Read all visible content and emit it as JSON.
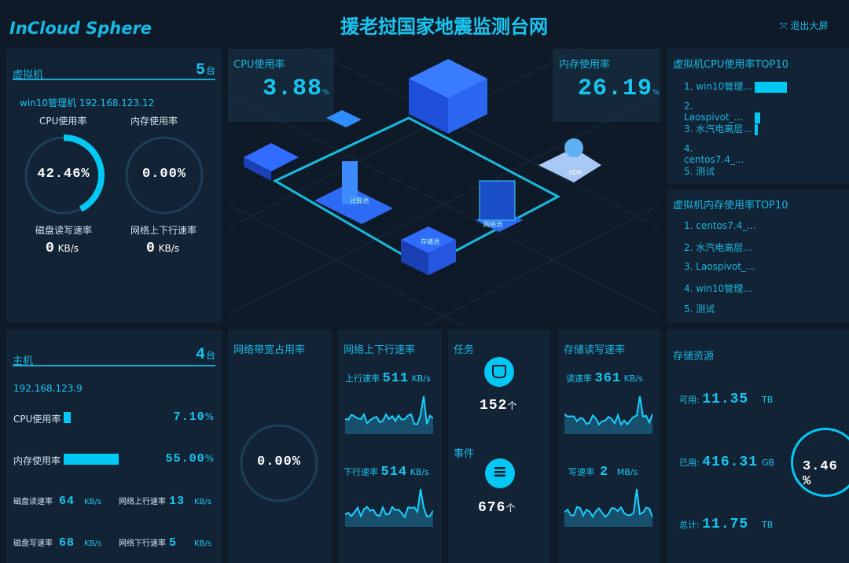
{
  "header": {
    "logo": "InCloud Sphere",
    "title": "援老挝国家地震监测台网",
    "exit_label": "退出大屏"
  },
  "vm": {
    "title": "虚拟机",
    "count": "5",
    "unit": "台",
    "name": "win10管理机 192.168.123.12",
    "cpu_label": "CPU使用率",
    "cpu_value": "42.46",
    "cpu_pct": 42.46,
    "mem_label": "内存使用率",
    "mem_value": "0.00",
    "pct": "%",
    "disk_label": "磁盘读写速率",
    "disk_value": "0",
    "net_label": "网络上下行速率",
    "net_value": "0",
    "kbs": "KB/s"
  },
  "host": {
    "title": "主机",
    "count": "4",
    "unit": "台",
    "ip": "192.168.123.9",
    "cpu_label": "CPU使用率",
    "cpu_value": "7.10",
    "cpu_pct": 7.1,
    "mem_label": "内存使用率",
    "mem_value": "55.00",
    "mem_pct": 55,
    "pct": "%",
    "kbs": "KB/s",
    "stats": [
      {
        "label": "磁盘读速率",
        "value": "64"
      },
      {
        "label": "网络上行速率",
        "value": "13"
      },
      {
        "label": "磁盘写速率",
        "value": "68"
      },
      {
        "label": "网络下行速率",
        "value": "5"
      }
    ]
  },
  "cpu": {
    "title": "CPU使用率",
    "value": "3.88",
    "unit": "%"
  },
  "mem": {
    "title": "内存使用率",
    "value": "26.19",
    "unit": "%"
  },
  "center": {
    "labels": [
      "计算池",
      "存储池",
      "网络池",
      "SDN"
    ]
  },
  "cpu_top": {
    "title": "虚拟机CPU使用率TOP10",
    "items": [
      {
        "label": "1. win10管理...",
        "pct": 100
      },
      {
        "label": "2. Laospivot_...",
        "pct": 18
      },
      {
        "label": "3. 水汽电离层...",
        "pct": 10
      },
      {
        "label": "4. centos7.4_...",
        "pct": 0
      },
      {
        "label": "5. 测试",
        "pct": 0
      }
    ]
  },
  "mem_top": {
    "title": "虚拟机内存使用率TOP10",
    "items": [
      "1. centos7.4_...",
      "2. 水汽电离层...",
      "3. Laospivot_...",
      "4. win10管理...",
      "5. 测试"
    ]
  },
  "bandwidth": {
    "title": "网络带宽占用率",
    "value": "0.00",
    "unit": "%"
  },
  "net": {
    "title": "网络上下行速率",
    "up_label": "上行速率",
    "up_value": "511",
    "down_label": "下行速率",
    "down_value": "514",
    "unit": "KB/s"
  },
  "task": {
    "title": "任务",
    "value": "152",
    "unit": "个",
    "event_title": "事件",
    "event_value": "676"
  },
  "storage_rate": {
    "title": "存储读写速率",
    "read_label": "读速率",
    "read_value": "361",
    "read_unit": "KB/s",
    "write_label": "写速率",
    "write_value": "2",
    "write_unit": "MB/s"
  },
  "storage": {
    "title": "存储资源",
    "avail_label": "可用:",
    "avail_value": "11.35",
    "avail_unit": "TB",
    "used_label": "已用:",
    "used_value": "416.31",
    "used_unit": "GB",
    "total_label": "总计:",
    "total_value": "11.75",
    "total_unit": "TB",
    "pct": "3.46",
    "pct_unit": "%"
  },
  "colors": {
    "accent": "#00c8f5",
    "bg": "#0f1a28",
    "panel": "#132336"
  }
}
